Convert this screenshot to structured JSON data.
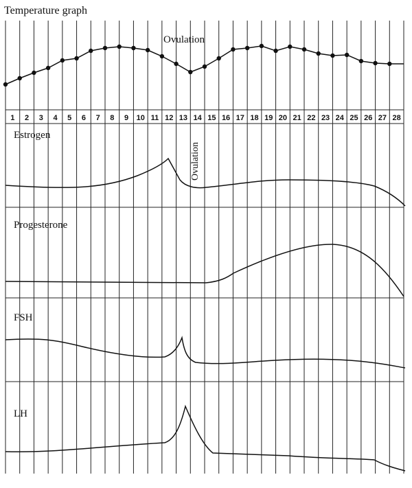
{
  "title": "Temperature graph",
  "ovulation_label": "Ovulation",
  "days": [
    "1",
    "2",
    "3",
    "4",
    "5",
    "6",
    "7",
    "8",
    "9",
    "10",
    "11",
    "12",
    "13",
    "14",
    "15",
    "16",
    "17",
    "18",
    "19",
    "20",
    "21",
    "22",
    "23",
    "24",
    "25",
    "26",
    "27",
    "28"
  ],
  "panels": [
    {
      "label": "Estrogen",
      "ovulation_label": "Ovulation"
    },
    {
      "label": "Progesterone"
    },
    {
      "label": "FSH"
    },
    {
      "label": "LH"
    }
  ]
}
